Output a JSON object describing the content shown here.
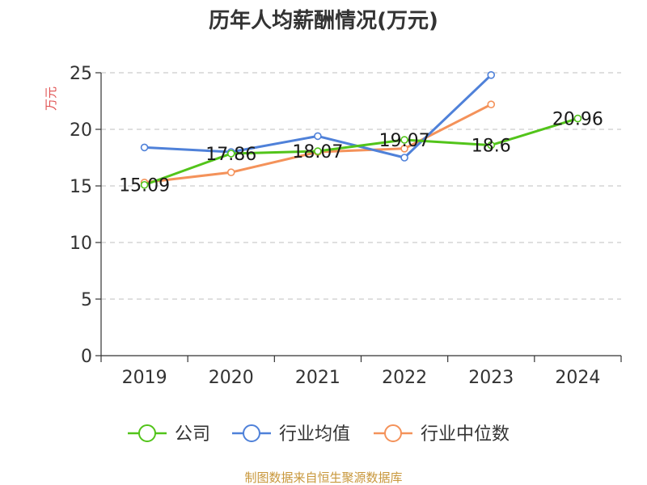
{
  "chart_data": {
    "type": "line",
    "title": "历年人均薪酬情况(万元)",
    "ylabel": "万元",
    "xlabel": "",
    "categories": [
      "2019",
      "2020",
      "2021",
      "2022",
      "2023",
      "2024"
    ],
    "ylim": [
      0,
      25
    ],
    "yticks": [
      0,
      5,
      10,
      15,
      20,
      25
    ],
    "grid": true,
    "legend_position": "bottom",
    "series": [
      {
        "name": "公司",
        "color": "#52c41a",
        "values": [
          15.09,
          17.86,
          18.07,
          19.07,
          18.6,
          20.96
        ],
        "labels": [
          "15.09",
          "17.86",
          "18.07",
          "19.07",
          "18.6",
          "20.96"
        ]
      },
      {
        "name": "行业均值",
        "color": "#4f81d9",
        "values": [
          18.4,
          18.0,
          19.4,
          17.5,
          24.8,
          null
        ]
      },
      {
        "name": "行业中位数",
        "color": "#f4925a",
        "values": [
          15.3,
          16.2,
          18.0,
          18.3,
          22.2,
          null
        ]
      }
    ]
  },
  "source": "制图数据来自恒生聚源数据库",
  "colors": {
    "source": "#c8973b",
    "ylabel": "#e05050",
    "grid": "#cccccc"
  }
}
